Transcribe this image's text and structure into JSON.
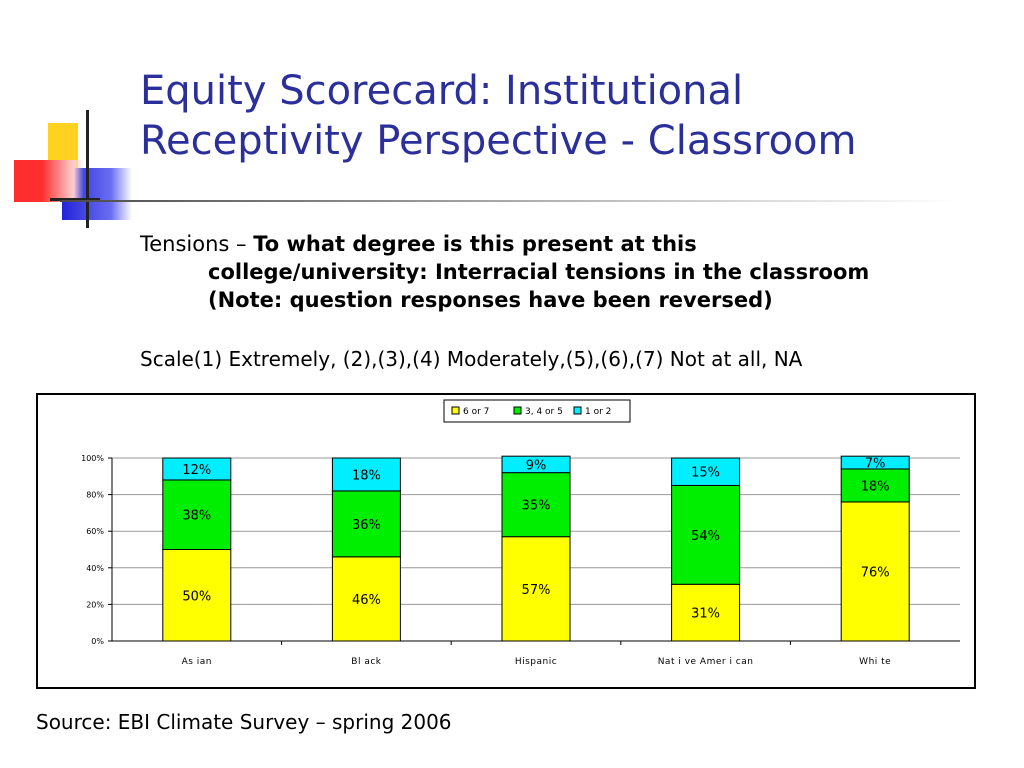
{
  "slide": {
    "title_line1": "Equity Scorecard: Institutional",
    "title_line2": "Receptivity Perspective - Classroom",
    "question_lead": "Tensions – ",
    "question_text": "To what degree is this present at this college/university: Interracial tensions in the classroom (Note: question responses have been reversed)",
    "scale": "Scale(1) Extremely, (2),(3),(4) Moderately,(5),(6),(7) Not at all, NA",
    "source": "Source: EBI Climate Survey – spring 2006"
  },
  "colors": {
    "title": "#2b2f9a",
    "series_6or7": "#ffff00",
    "series_345": "#00ee00",
    "series_1or2": "#00eeff"
  },
  "chart_data": {
    "type": "bar",
    "stacked": true,
    "categories": [
      "Asian",
      "Black",
      "Hispanic",
      "Native American",
      "White"
    ],
    "category_labels": [
      "As ian",
      "Bl ack",
      "Hispanic",
      "Nat i ve Amer i can",
      "Whi te"
    ],
    "series": [
      {
        "name": "6 or 7",
        "values": [
          50,
          46,
          57,
          31,
          76
        ],
        "labels": [
          "50%",
          "46%",
          "57%",
          "31%",
          "76%"
        ],
        "color": "#ffff00"
      },
      {
        "name": "3, 4 or 5",
        "values": [
          38,
          36,
          35,
          54,
          18
        ],
        "labels": [
          "38%",
          "36%",
          "35%",
          "54%",
          "18%"
        ],
        "color": "#00ee00"
      },
      {
        "name": "1 or 2",
        "values": [
          12,
          18,
          9,
          15,
          7
        ],
        "labels": [
          "12%",
          "18%",
          "9%",
          "15%",
          "7%"
        ],
        "color": "#00eeff"
      }
    ],
    "yticks": [
      "0%",
      "20%",
      "40%",
      "60%",
      "80%",
      "100%"
    ],
    "ylim": [
      0,
      100
    ],
    "grid": true,
    "legend_position": "top-center"
  }
}
